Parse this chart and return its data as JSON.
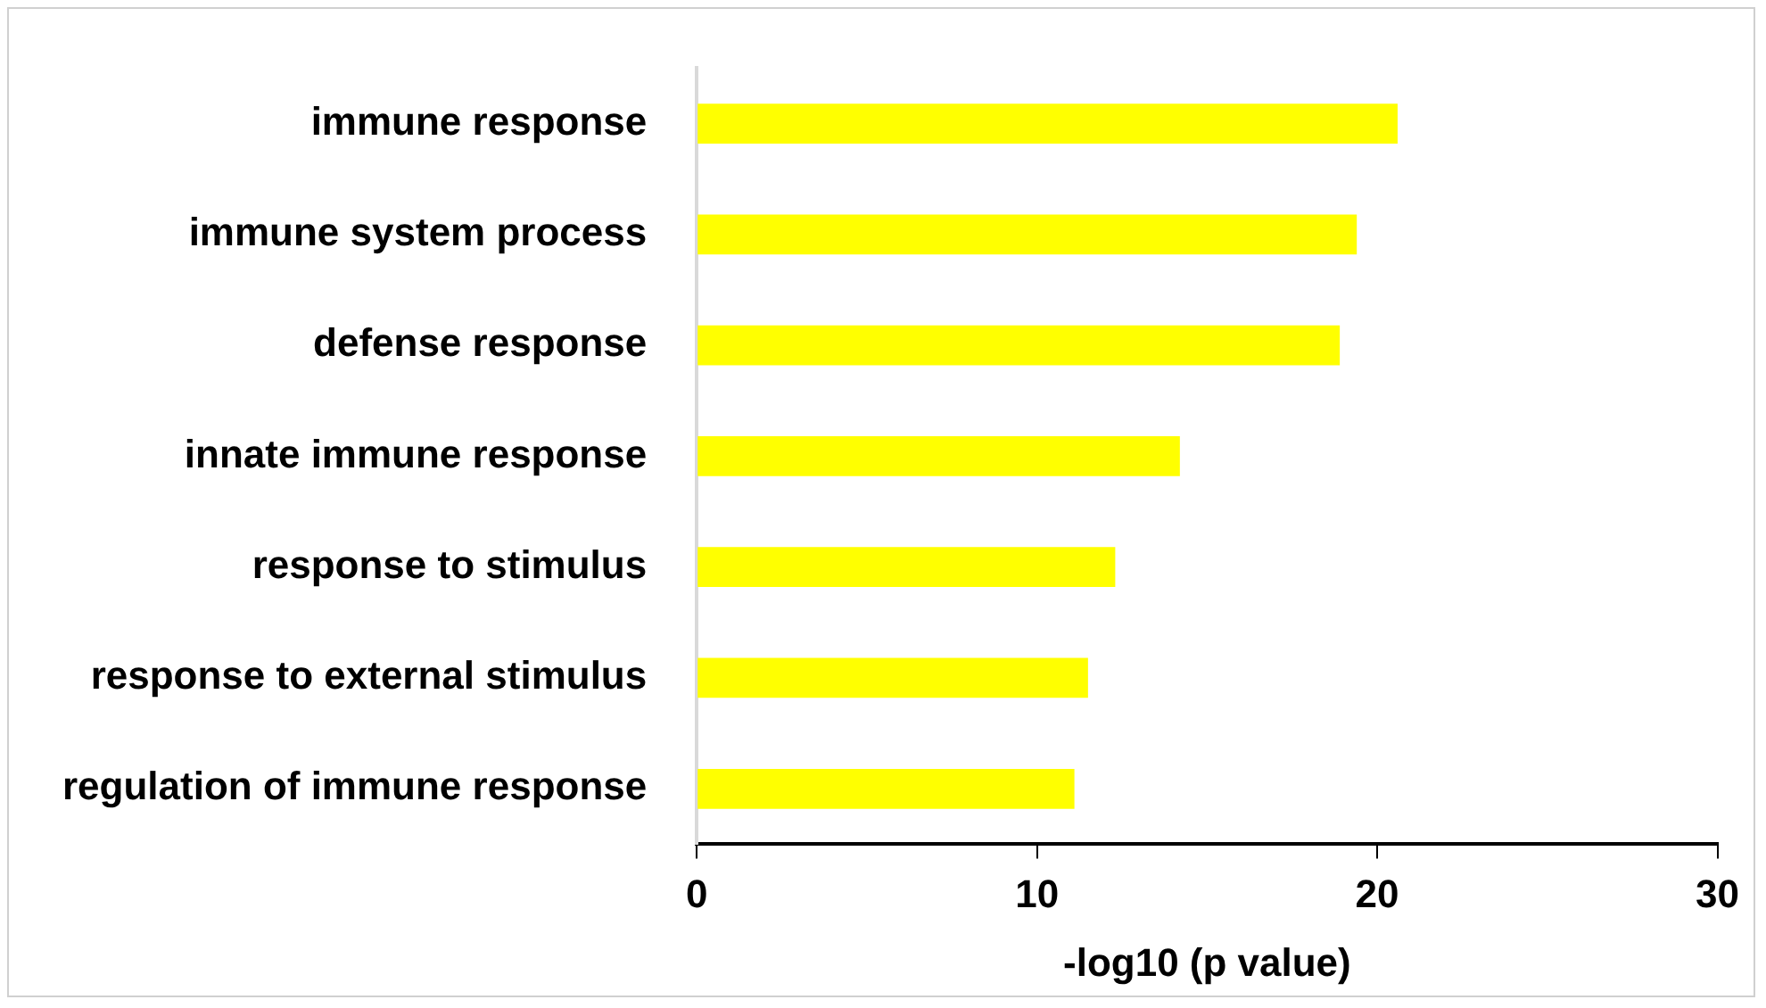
{
  "chart_data": {
    "type": "bar",
    "orientation": "horizontal",
    "xlabel": "-log10 (p value)",
    "categories": [
      "immune response",
      "immune system process",
      "defense response",
      "innate immune response",
      "response to stimulus",
      "response to external stimulus",
      "regulation of immune response"
    ],
    "values": [
      20.6,
      19.4,
      18.9,
      14.2,
      12.3,
      11.5,
      11.1
    ],
    "color": "#ffff00",
    "xlim": [
      0,
      30
    ],
    "xticks": [
      0,
      10,
      20,
      30
    ],
    "grid": false
  }
}
